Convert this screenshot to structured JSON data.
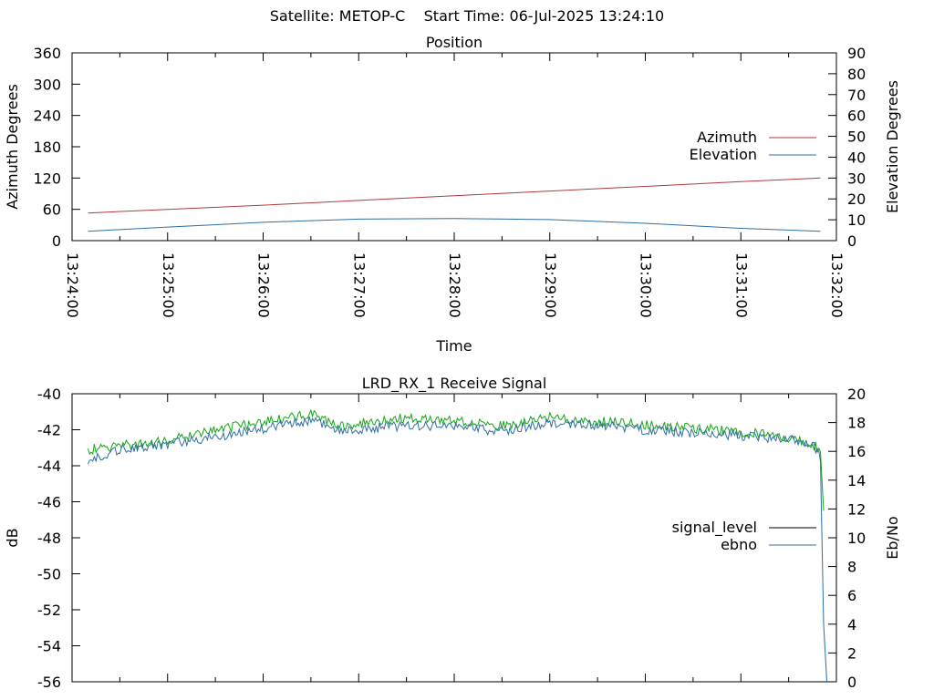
{
  "header": {
    "title": "Satellite: METOP-C    Start Time: 06-Jul-2025 13:24:10"
  },
  "chart_data": [
    {
      "type": "line",
      "title": "Position",
      "xlabel": "Time",
      "ylabel": "Azimuth Degrees",
      "y2label": "Elevation Degrees",
      "xlim": [
        "13:24:00",
        "13:32:00"
      ],
      "ylim": [
        0,
        360
      ],
      "y2lim": [
        0,
        90
      ],
      "x_ticks": [
        "13:24:00",
        "13:25:00",
        "13:26:00",
        "13:27:00",
        "13:28:00",
        "13:29:00",
        "13:30:00",
        "13:31:00",
        "13:32:00"
      ],
      "y_ticks": [
        0,
        60,
        120,
        180,
        240,
        300,
        360
      ],
      "y2_ticks": [
        0,
        10,
        20,
        30,
        40,
        50,
        60,
        70,
        80,
        90
      ],
      "legend_position": "right-middle",
      "grid": false,
      "series": [
        {
          "name": "Azimuth",
          "axis": "left",
          "color": "#b03a3a",
          "x": [
            "13:24:10",
            "13:25:00",
            "13:26:00",
            "13:27:00",
            "13:28:00",
            "13:29:00",
            "13:30:00",
            "13:31:00",
            "13:31:50"
          ],
          "y": [
            53,
            60,
            68,
            77,
            86,
            95,
            104,
            113,
            120
          ]
        },
        {
          "name": "Elevation",
          "axis": "right",
          "color": "#2f6ea3",
          "x": [
            "13:24:10",
            "13:25:00",
            "13:26:00",
            "13:27:00",
            "13:28:00",
            "13:29:00",
            "13:30:00",
            "13:31:00",
            "13:31:50"
          ],
          "y": [
            4.5,
            6.5,
            8.8,
            10.3,
            10.6,
            10.1,
            8.3,
            5.9,
            4.5
          ]
        }
      ]
    },
    {
      "type": "line",
      "title": "LRD_RX_1 Receive Signal",
      "xlabel": "",
      "ylabel": "dB",
      "y2label": "Eb/No",
      "ylim": [
        -56,
        -40
      ],
      "y2lim": [
        0,
        20
      ],
      "y_ticks": [
        -56,
        -54,
        -52,
        -50,
        -48,
        -46,
        -44,
        -42,
        -40
      ],
      "y2_ticks": [
        0,
        2,
        4,
        6,
        8,
        10,
        12,
        14,
        16,
        18,
        20
      ],
      "legend_position": "right-middle",
      "grid": false,
      "series": [
        {
          "name": "signal_level",
          "axis": "left",
          "color": "#000000",
          "line_color": "#12a812",
          "x": [
            "13:24:10",
            "13:24:30",
            "13:25:00",
            "13:25:30",
            "13:26:00",
            "13:26:30",
            "13:26:50",
            "13:27:30",
            "13:28:00",
            "13:28:30",
            "13:29:00",
            "13:29:30",
            "13:30:00",
            "13:30:30",
            "13:31:00",
            "13:31:30",
            "13:31:45",
            "13:31:50",
            "13:31:52"
          ],
          "y": [
            -43.1,
            -42.9,
            -42.6,
            -42.0,
            -41.6,
            -41.1,
            -41.8,
            -41.3,
            -41.5,
            -41.8,
            -41.3,
            -41.5,
            -41.7,
            -41.9,
            -42.1,
            -42.4,
            -42.8,
            -43.2,
            -46.5
          ]
        },
        {
          "name": "ebno",
          "axis": "right",
          "color": "#2f6ea3",
          "x": [
            "13:24:10",
            "13:24:30",
            "13:25:00",
            "13:25:30",
            "13:26:00",
            "13:26:30",
            "13:26:50",
            "13:27:30",
            "13:28:00",
            "13:28:30",
            "13:29:00",
            "13:29:30",
            "13:30:00",
            "13:30:30",
            "13:31:00",
            "13:31:30",
            "13:31:45",
            "13:31:50",
            "13:31:52",
            "13:31:54"
          ],
          "y": [
            15.4,
            16.1,
            16.5,
            17.0,
            17.6,
            18.2,
            17.4,
            17.8,
            17.7,
            17.4,
            18.0,
            17.8,
            17.5,
            17.3,
            17.1,
            16.8,
            16.5,
            15.5,
            4.0,
            0
          ]
        }
      ]
    }
  ]
}
